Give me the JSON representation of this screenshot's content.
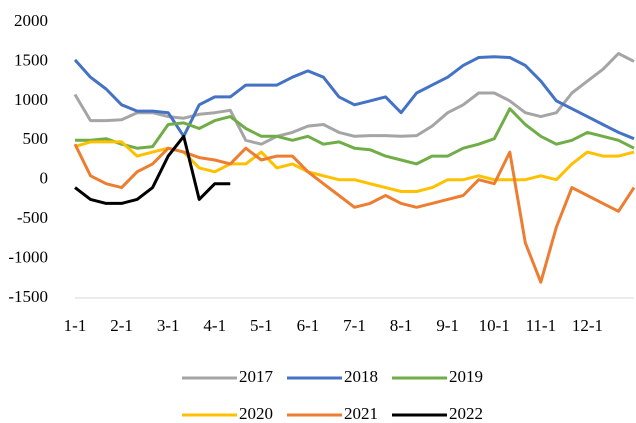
{
  "chart_data": {
    "type": "line",
    "categories": [
      "1-1",
      null,
      null,
      "2-1",
      null,
      null,
      "3-1",
      null,
      null,
      "4-1",
      null,
      null,
      "5-1",
      null,
      null,
      "6-1",
      null,
      null,
      "7-1",
      null,
      null,
      "8-1",
      null,
      null,
      "9-1",
      null,
      null,
      "10-1",
      null,
      null,
      "11-1",
      null,
      null,
      "12-1",
      null,
      null,
      null
    ],
    "ylim": [
      -1500,
      2000
    ],
    "yticks": [
      -1500,
      -1000,
      -500,
      0,
      500,
      1000,
      1500,
      2000
    ],
    "grid": false,
    "legend": "bottom",
    "series": [
      {
        "name": "2017",
        "color": "#a5a5a5",
        "values": [
          1080,
          750,
          750,
          760,
          850,
          850,
          800,
          780,
          830,
          850,
          880,
          500,
          450,
          550,
          600,
          680,
          700,
          600,
          550,
          560,
          560,
          550,
          560,
          680,
          850,
          950,
          1100,
          1100,
          1000,
          850,
          800,
          850,
          1100,
          1250,
          1400,
          1600,
          1500
        ]
      },
      {
        "name": "2018",
        "color": "#4472c4",
        "values": [
          1520,
          1300,
          1150,
          950,
          870,
          870,
          850,
          550,
          950,
          1050,
          1050,
          1200,
          1200,
          1200,
          1300,
          1380,
          1300,
          1050,
          950,
          1000,
          1050,
          850,
          1100,
          1200,
          1300,
          1450,
          1550,
          1560,
          1550,
          1450,
          1250,
          1000,
          900,
          800,
          700,
          600,
          520
        ]
      },
      {
        "name": "2019",
        "color": "#70ad47",
        "values": [
          500,
          500,
          520,
          450,
          400,
          420,
          700,
          720,
          650,
          750,
          800,
          650,
          550,
          550,
          500,
          550,
          450,
          480,
          400,
          380,
          300,
          250,
          200,
          300,
          300,
          400,
          450,
          520,
          900,
          700,
          550,
          450,
          500,
          600,
          550,
          500,
          400
        ]
      },
      {
        "name": "2020",
        "color": "#ffc000",
        "values": [
          420,
          480,
          480,
          480,
          300,
          350,
          400,
          350,
          150,
          100,
          200,
          200,
          350,
          150,
          200,
          100,
          50,
          0,
          0,
          -50,
          -100,
          -150,
          -150,
          -100,
          0,
          0,
          50,
          0,
          0,
          0,
          50,
          0,
          200,
          350,
          300,
          300,
          350
        ]
      },
      {
        "name": "2021",
        "color": "#ed7d31",
        "values": [
          450,
          50,
          -50,
          -100,
          100,
          200,
          400,
          350,
          280,
          250,
          200,
          400,
          250,
          300,
          300,
          100,
          -50,
          -200,
          -350,
          -300,
          -200,
          -300,
          -350,
          -300,
          -250,
          -200,
          0,
          -50,
          350,
          -800,
          -1300,
          -600,
          -100,
          -200,
          -300,
          -400,
          -100
        ]
      },
      {
        "name": "2022",
        "color": "#000000",
        "values": [
          -100,
          -250,
          -300,
          -300,
          -250,
          -100,
          300,
          550,
          -250,
          -50,
          -50,
          null,
          null,
          null,
          null,
          null,
          null,
          null,
          null,
          null,
          null,
          null,
          null,
          null,
          null,
          null,
          null,
          null,
          null,
          null,
          null,
          null,
          null,
          null,
          null,
          null,
          null
        ]
      }
    ]
  }
}
